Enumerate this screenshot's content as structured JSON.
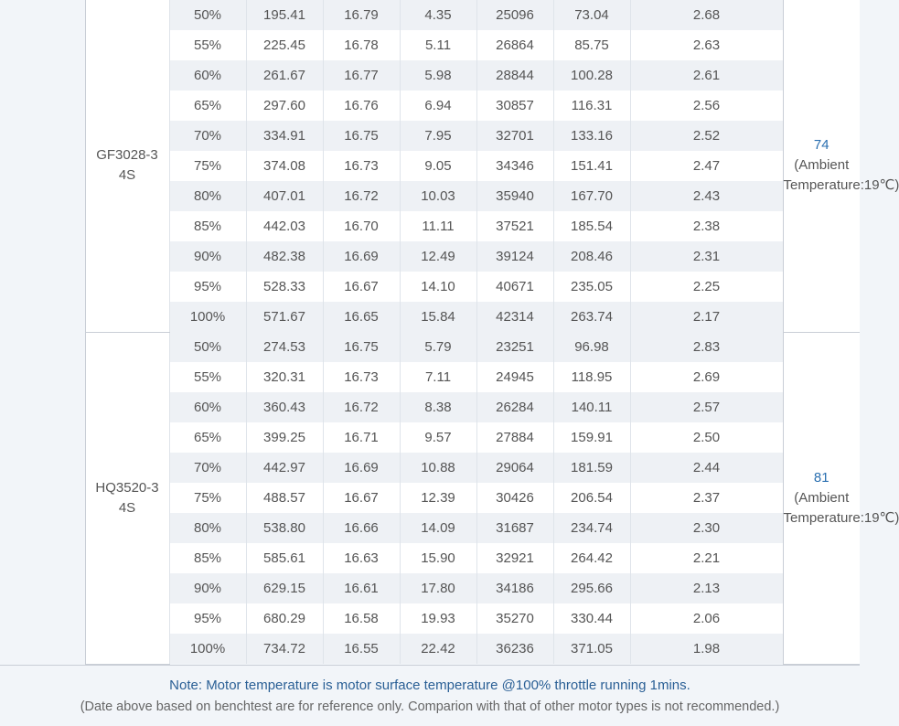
{
  "groups": [
    {
      "propeller": [
        "GF3028-3",
        "4S"
      ],
      "temperature": {
        "value": "74",
        "note_line1": "(Ambient",
        "note_line2": "Temperature:19℃)"
      },
      "rows": [
        [
          "50%",
          "195.41",
          "16.79",
          "4.35",
          "25096",
          "73.04",
          "2.68"
        ],
        [
          "55%",
          "225.45",
          "16.78",
          "5.11",
          "26864",
          "85.75",
          "2.63"
        ],
        [
          "60%",
          "261.67",
          "16.77",
          "5.98",
          "28844",
          "100.28",
          "2.61"
        ],
        [
          "65%",
          "297.60",
          "16.76",
          "6.94",
          "30857",
          "116.31",
          "2.56"
        ],
        [
          "70%",
          "334.91",
          "16.75",
          "7.95",
          "32701",
          "133.16",
          "2.52"
        ],
        [
          "75%",
          "374.08",
          "16.73",
          "9.05",
          "34346",
          "151.41",
          "2.47"
        ],
        [
          "80%",
          "407.01",
          "16.72",
          "10.03",
          "35940",
          "167.70",
          "2.43"
        ],
        [
          "85%",
          "442.03",
          "16.70",
          "11.11",
          "37521",
          "185.54",
          "2.38"
        ],
        [
          "90%",
          "482.38",
          "16.69",
          "12.49",
          "39124",
          "208.46",
          "2.31"
        ],
        [
          "95%",
          "528.33",
          "16.67",
          "14.10",
          "40671",
          "235.05",
          "2.25"
        ],
        [
          "100%",
          "571.67",
          "16.65",
          "15.84",
          "42314",
          "263.74",
          "2.17"
        ]
      ]
    },
    {
      "propeller": [
        "HQ3520-3",
        "4S"
      ],
      "temperature": {
        "value": "81",
        "note_line1": "(Ambient",
        "note_line2": "Temperature:19℃)"
      },
      "rows": [
        [
          "50%",
          "274.53",
          "16.75",
          "5.79",
          "23251",
          "96.98",
          "2.83"
        ],
        [
          "55%",
          "320.31",
          "16.73",
          "7.11",
          "24945",
          "118.95",
          "2.69"
        ],
        [
          "60%",
          "360.43",
          "16.72",
          "8.38",
          "26284",
          "140.11",
          "2.57"
        ],
        [
          "65%",
          "399.25",
          "16.71",
          "9.57",
          "27884",
          "159.91",
          "2.50"
        ],
        [
          "70%",
          "442.97",
          "16.69",
          "10.88",
          "29064",
          "181.59",
          "2.44"
        ],
        [
          "75%",
          "488.57",
          "16.67",
          "12.39",
          "30426",
          "206.54",
          "2.37"
        ],
        [
          "80%",
          "538.80",
          "16.66",
          "14.09",
          "31687",
          "234.74",
          "2.30"
        ],
        [
          "85%",
          "585.61",
          "16.63",
          "15.90",
          "32921",
          "264.42",
          "2.21"
        ],
        [
          "90%",
          "629.15",
          "16.61",
          "17.80",
          "34186",
          "295.66",
          "2.13"
        ],
        [
          "95%",
          "680.29",
          "16.58",
          "19.93",
          "35270",
          "330.44",
          "2.06"
        ],
        [
          "100%",
          "734.72",
          "16.55",
          "22.42",
          "36236",
          "371.05",
          "1.98"
        ]
      ]
    }
  ],
  "footer": {
    "note": "Note: Motor temperature is motor surface temperature @100% throttle running 1mins.",
    "disclaimer": "(Date above based on benchtest are for reference only. Comparion with that of other motor types is not recommended.)"
  },
  "colors": {
    "accent": "#2a5f95",
    "stripe": "#eef1f5"
  }
}
